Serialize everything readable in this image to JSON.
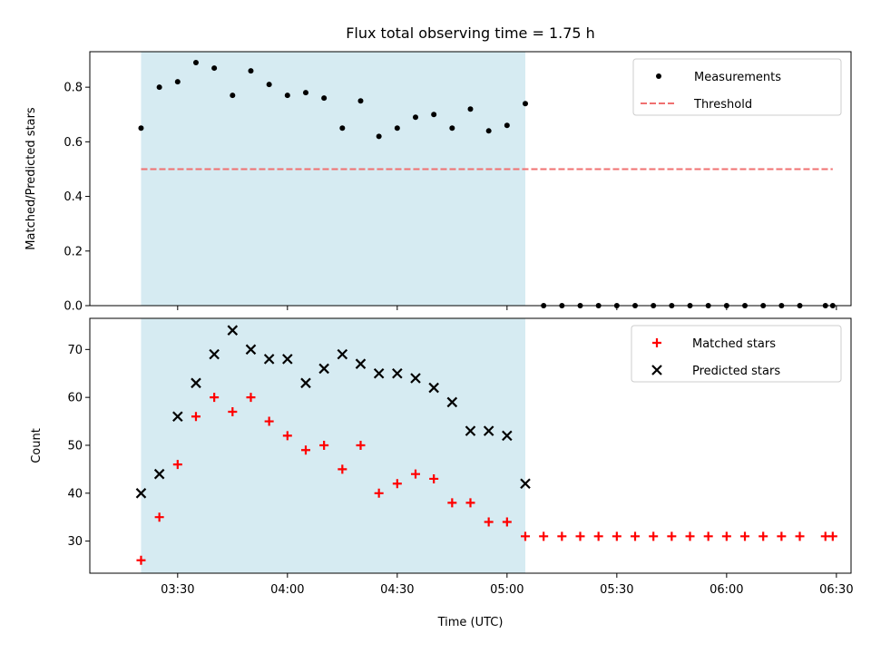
{
  "chart_data": [
    {
      "type": "scatter",
      "title": "Flux total observing time = 1.75 h",
      "xlabel": "",
      "ylabel": "Matched/Predicted stars",
      "ylim": [
        0.0,
        0.93
      ],
      "yticks": [
        "0.0",
        "0.2",
        "0.4",
        "0.6",
        "0.8"
      ],
      "xlim": [
        "03:06",
        "06:34"
      ],
      "xticks": [
        "03:30",
        "04:00",
        "04:30",
        "05:00",
        "05:30",
        "06:00",
        "06:30"
      ],
      "shaded_span": [
        "03:20",
        "05:05"
      ],
      "legend_position": "top-right",
      "series": [
        {
          "name": "Measurements",
          "color": "#000000",
          "marker": "dot",
          "x": [
            "03:20",
            "03:25",
            "03:30",
            "03:35",
            "03:40",
            "03:45",
            "03:50",
            "03:55",
            "04:00",
            "04:05",
            "04:10",
            "04:15",
            "04:20",
            "04:25",
            "04:30",
            "04:35",
            "04:40",
            "04:45",
            "04:50",
            "04:55",
            "05:00",
            "05:05",
            "05:10",
            "05:15",
            "05:20",
            "05:25",
            "05:30",
            "05:35",
            "05:40",
            "05:45",
            "05:50",
            "05:55",
            "06:00",
            "06:05",
            "06:10",
            "06:15",
            "06:20",
            "06:27",
            "06:29"
          ],
          "y": [
            0.65,
            0.8,
            0.82,
            0.89,
            0.87,
            0.77,
            0.86,
            0.81,
            0.77,
            0.78,
            0.76,
            0.65,
            0.75,
            0.62,
            0.65,
            0.69,
            0.7,
            0.65,
            0.72,
            0.64,
            0.66,
            0.74,
            0,
            0,
            0,
            0,
            0,
            0,
            0,
            0,
            0,
            0,
            0,
            0,
            0,
            0,
            0,
            0,
            0
          ]
        },
        {
          "name": "Threshold",
          "color": "#f07070",
          "style": "dashed-line",
          "x": [
            "03:20",
            "06:29"
          ],
          "y": [
            0.5,
            0.5
          ]
        }
      ]
    },
    {
      "type": "scatter",
      "title": "",
      "xlabel": "Time (UTC)",
      "ylabel": "Count",
      "ylim": [
        23.3,
        76.5
      ],
      "yticks": [
        "30",
        "40",
        "50",
        "60",
        "70"
      ],
      "xlim": [
        "03:06",
        "06:34"
      ],
      "xticks": [
        "03:30",
        "04:00",
        "04:30",
        "05:00",
        "05:30",
        "06:00",
        "06:30"
      ],
      "shaded_span": [
        "03:20",
        "05:05"
      ],
      "legend_position": "top-right",
      "series": [
        {
          "name": "Matched stars",
          "color": "#ff0000",
          "marker": "plus",
          "x": [
            "03:20",
            "03:25",
            "03:30",
            "03:35",
            "03:40",
            "03:45",
            "03:50",
            "03:55",
            "04:00",
            "04:05",
            "04:10",
            "04:15",
            "04:20",
            "04:25",
            "04:30",
            "04:35",
            "04:40",
            "04:45",
            "04:50",
            "04:55",
            "05:00",
            "05:05",
            "05:10",
            "05:15",
            "05:20",
            "05:25",
            "05:30",
            "05:35",
            "05:40",
            "05:45",
            "05:50",
            "05:55",
            "06:00",
            "06:05",
            "06:10",
            "06:15",
            "06:20",
            "06:27",
            "06:29"
          ],
          "y": [
            26,
            35,
            46,
            56,
            60,
            57,
            60,
            55,
            52,
            49,
            50,
            45,
            50,
            40,
            42,
            44,
            43,
            38,
            38,
            34,
            34,
            31,
            31,
            31,
            31,
            31,
            31,
            31,
            31,
            31,
            31,
            31,
            31,
            31,
            31,
            31,
            31,
            31,
            31
          ]
        },
        {
          "name": "Predicted stars",
          "color": "#000000",
          "marker": "x",
          "x": [
            "03:20",
            "03:25",
            "03:30",
            "03:35",
            "03:40",
            "03:45",
            "03:50",
            "03:55",
            "04:00",
            "04:05",
            "04:10",
            "04:15",
            "04:20",
            "04:25",
            "04:30",
            "04:35",
            "04:40",
            "04:45",
            "04:50",
            "04:55",
            "05:00",
            "05:05"
          ],
          "y": [
            40,
            44,
            56,
            63,
            69,
            74,
            70,
            68,
            68,
            63,
            66,
            69,
            67,
            65,
            65,
            64,
            62,
            59,
            53,
            53,
            52,
            42
          ]
        }
      ]
    }
  ],
  "colors": {
    "shade": "#add8e6",
    "shade_alpha": 0.5
  }
}
